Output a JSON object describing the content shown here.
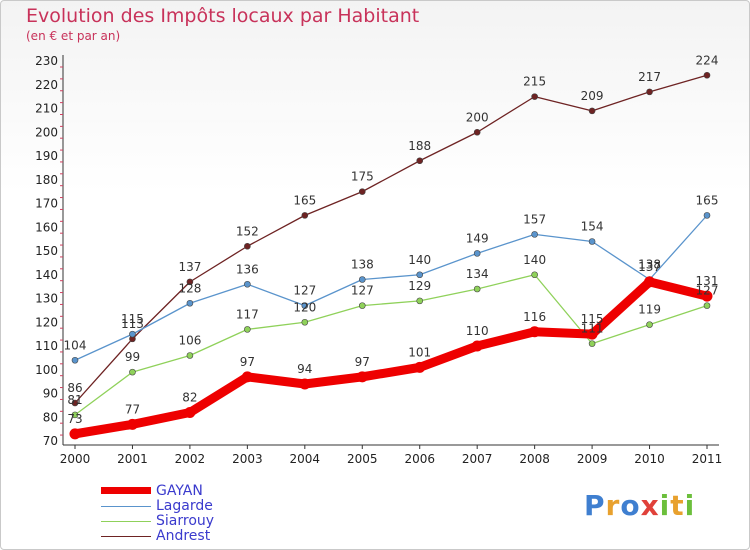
{
  "chart_data": {
    "type": "line",
    "title": "Evolution des Impôts locaux par Habitant",
    "subtitle": "(en € et par an)",
    "xlabel": "",
    "ylabel": "",
    "x": [
      2000,
      2001,
      2002,
      2003,
      2004,
      2005,
      2006,
      2007,
      2008,
      2009,
      2010,
      2011
    ],
    "ylim": [
      70,
      230
    ],
    "yticks": [
      70,
      80,
      90,
      100,
      110,
      120,
      130,
      140,
      150,
      160,
      170,
      180,
      190,
      200,
      210,
      220,
      230
    ],
    "grid": false,
    "legend_position": "bottom-left",
    "series": [
      {
        "name": "GAYAN",
        "color": "#ee0000",
        "values": [
          73,
          77,
          82,
          97,
          94,
          97,
          101,
          110,
          116,
          115,
          137,
          131
        ]
      },
      {
        "name": "Lagarde",
        "color": "#5a94cc",
        "values": [
          104,
          115,
          128,
          136,
          127,
          138,
          140,
          149,
          157,
          154,
          138,
          165
        ]
      },
      {
        "name": "Siarrouy",
        "color": "#8fd15a",
        "values": [
          81,
          99,
          106,
          117,
          120,
          127,
          129,
          134,
          140,
          111,
          119,
          127
        ]
      },
      {
        "name": "Andrest",
        "color": "#6e2323",
        "values": [
          86,
          113,
          137,
          152,
          165,
          175,
          188,
          200,
          215,
          209,
          217,
          224
        ]
      }
    ]
  },
  "logo": {
    "letters": [
      "P",
      "r",
      "o",
      "x",
      "i",
      "t",
      "i"
    ],
    "colors": [
      "#3f7fd0",
      "#e8a12e",
      "#3f7fd0",
      "#e0413a",
      "#6cbf3c",
      "#e8a12e",
      "#6cbf3c"
    ]
  }
}
